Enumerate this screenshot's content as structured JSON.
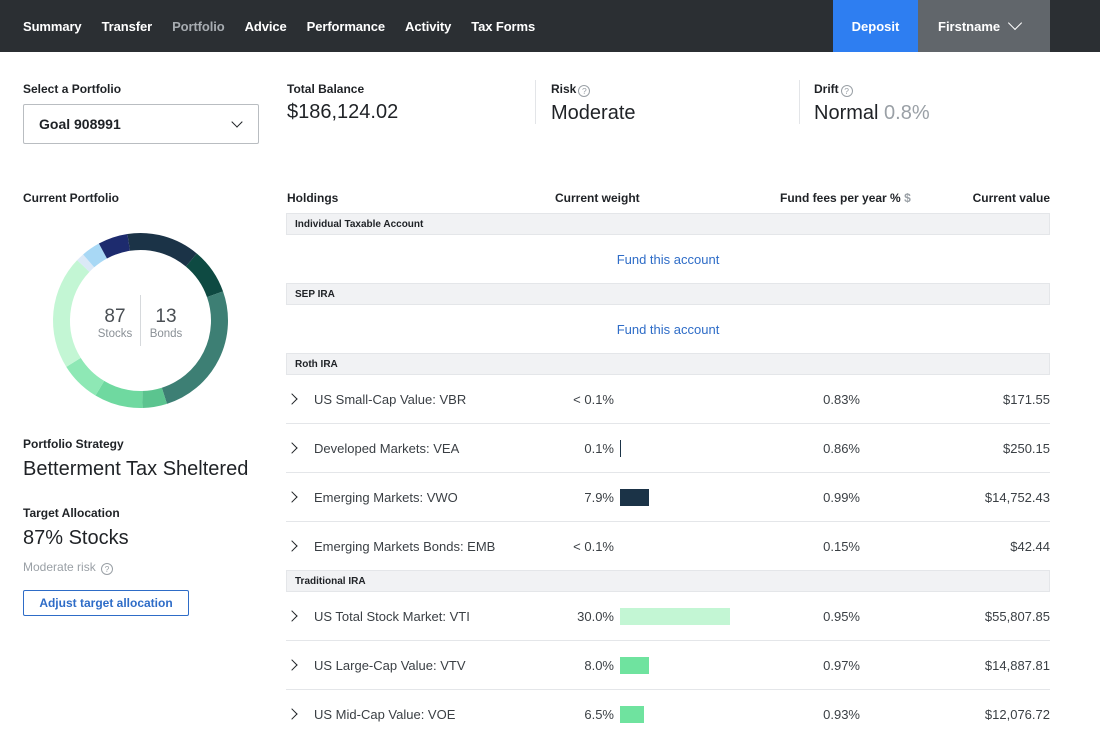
{
  "nav": {
    "items": [
      {
        "label": "Summary",
        "active": false
      },
      {
        "label": "Transfer",
        "active": false
      },
      {
        "label": "Portfolio",
        "active": true
      },
      {
        "label": "Advice",
        "active": false
      },
      {
        "label": "Performance",
        "active": false
      },
      {
        "label": "Activity",
        "active": false
      },
      {
        "label": "Tax Forms",
        "active": false
      }
    ],
    "deposit_label": "Deposit",
    "user_label": "Firstname"
  },
  "portfolio_select": {
    "label": "Select a Portfolio",
    "value": "Goal 908991"
  },
  "summary": {
    "total_balance_label": "Total Balance",
    "total_balance": "$186,124.02",
    "risk_label": "Risk",
    "risk_value": "Moderate",
    "drift_label": "Drift",
    "drift_value": "Normal",
    "drift_percent": "0.8%"
  },
  "current_portfolio": {
    "label": "Current Portfolio",
    "stocks_value": "87",
    "stocks_label": "Stocks",
    "bonds_value": "13",
    "bonds_label": "Bonds",
    "segments": [
      {
        "fraction": 0.085,
        "color": "#0e4a42"
      },
      {
        "fraction": 0.255,
        "color": "#3d7f74"
      },
      {
        "fraction": 0.045,
        "color": "#5bc48f"
      },
      {
        "fraction": 0.09,
        "color": "#6fd9a0"
      },
      {
        "fraction": 0.075,
        "color": "#8ee8b5"
      },
      {
        "fraction": 0.21,
        "color": "#c3f6d4"
      },
      {
        "fraction": 0.015,
        "color": "#dbe9f7"
      },
      {
        "fraction": 0.035,
        "color": "#a8d8f5"
      },
      {
        "fraction": 0.055,
        "color": "#1d2b6e"
      },
      {
        "fraction": 0.135,
        "color": "#1b3347"
      }
    ]
  },
  "strategy": {
    "label": "Portfolio Strategy",
    "value": "Betterment Tax Sheltered"
  },
  "target": {
    "label": "Target Allocation",
    "value": "87% Stocks",
    "risk_note": "Moderate risk",
    "adjust_label": "Adjust target allocation"
  },
  "holdings": {
    "headers": {
      "holdings": "Holdings",
      "weight": "Current weight",
      "fees": "Fund fees per year %",
      "fees_symbol": "$",
      "value": "Current value"
    },
    "fund_link": "Fund this account",
    "accounts": [
      {
        "name": "Individual Taxable Account"
      },
      {
        "name": "SEP IRA"
      },
      {
        "name": "Roth IRA"
      },
      {
        "name": "Traditional IRA"
      }
    ],
    "rows": [
      {
        "name": "US Small-Cap Value: VBR",
        "weight": "< 0.1%",
        "weight_fraction": 0.0,
        "bar_color": "#1b3347",
        "fee": "0.83%",
        "value": "$171.55"
      },
      {
        "name": "Developed Markets: VEA",
        "weight": "0.1%",
        "weight_fraction": 0.001,
        "bar_color": "#1b3347",
        "fee": "0.86%",
        "value": "$250.15"
      },
      {
        "name": "Emerging Markets: VWO",
        "weight": "7.9%",
        "weight_fraction": 0.079,
        "bar_color": "#1b3347",
        "fee": "0.99%",
        "value": "$14,752.43"
      },
      {
        "name": "Emerging Markets Bonds: EMB",
        "weight": "< 0.1%",
        "weight_fraction": 0.0,
        "bar_color": "#1b3347",
        "fee": "0.15%",
        "value": "$42.44"
      },
      {
        "name": "US Total Stock Market: VTI",
        "weight": "30.0%",
        "weight_fraction": 0.3,
        "bar_color": "#c3f6d4",
        "fee": "0.95%",
        "value": "$55,807.85"
      },
      {
        "name": "US Large-Cap Value: VTV",
        "weight": "8.0%",
        "weight_fraction": 0.08,
        "bar_color": "#6fe39f",
        "fee": "0.97%",
        "value": "$14,887.81"
      },
      {
        "name": "US Mid-Cap Value: VOE",
        "weight": "6.5%",
        "weight_fraction": 0.065,
        "bar_color": "#6fe39f",
        "fee": "0.93%",
        "value": "$12,076.72"
      }
    ]
  }
}
